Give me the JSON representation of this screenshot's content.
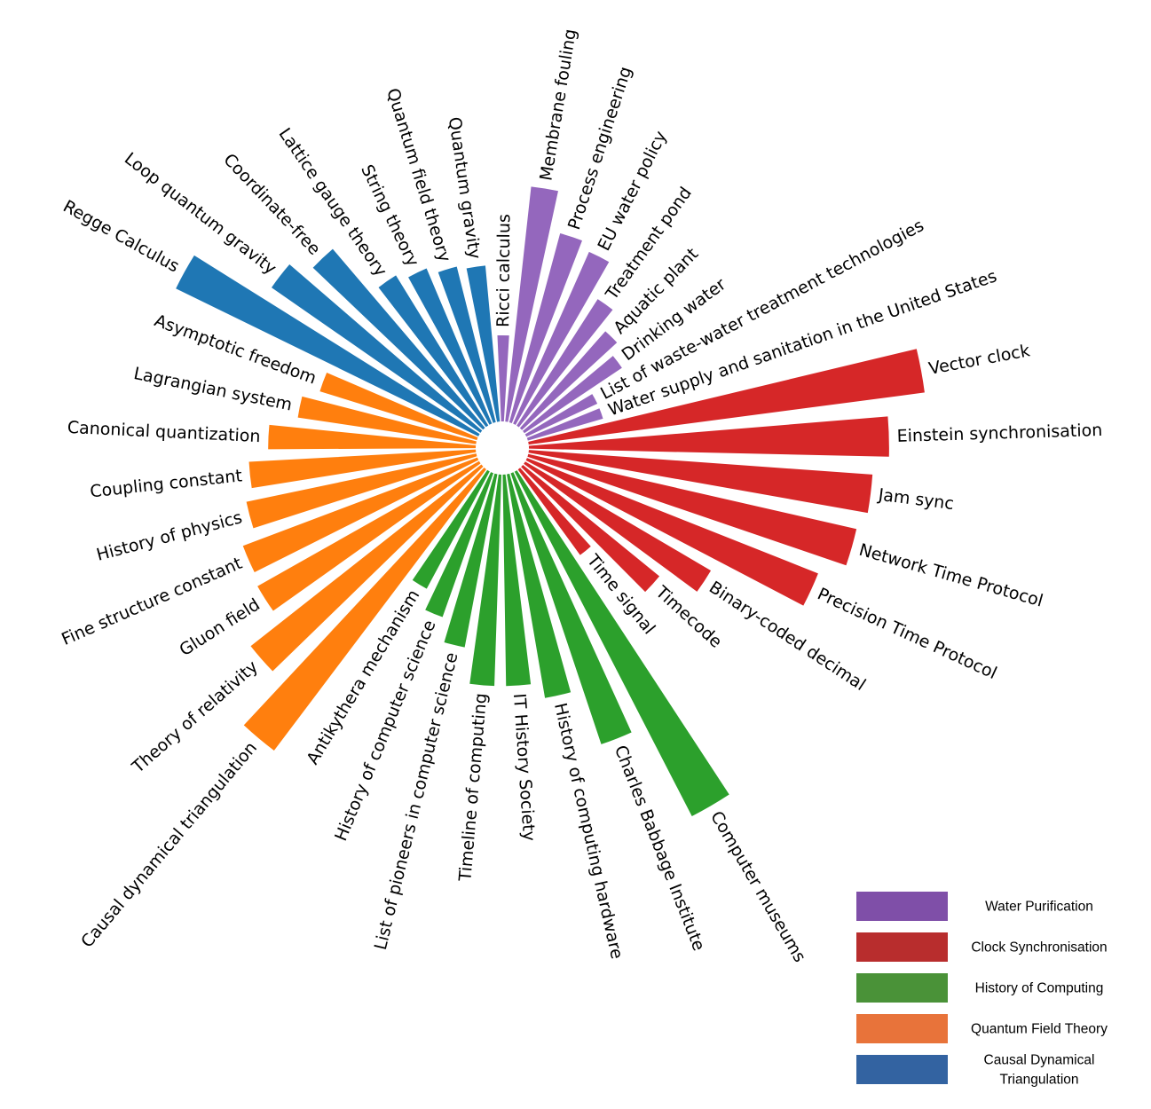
{
  "chart_data": {
    "type": "radial-bar",
    "title": "",
    "legend_position": "bottom-right",
    "grid": false,
    "groups": [
      {
        "name": "Water Purification",
        "color": "#9467bd"
      },
      {
        "name": "Clock Synchronisation",
        "color": "#d62728"
      },
      {
        "name": "History of Computing",
        "color": "#2ca02c"
      },
      {
        "name": "Quantum Field Theory",
        "color": "#ff7f0e"
      },
      {
        "name": "Causal Dynamical Triangulation",
        "color": "#1f77b4"
      }
    ],
    "legend_labels": [
      {
        "text": "Water Purification",
        "swatch_color": "#7f4fa8"
      },
      {
        "text": "Clock Synchronisation",
        "swatch_color": "#b82d2d"
      },
      {
        "text": "History of Computing",
        "swatch_color": "#4a9238"
      },
      {
        "text": "Quantum Field Theory",
        "swatch_color": "#e8733a"
      },
      {
        "text": "Causal Dynamical Triangulation",
        "swatch_color": "#3363a1"
      }
    ],
    "bars": [
      {
        "label": "Ricci calculus",
        "group": 0,
        "value": 110
      },
      {
        "label": "Membrane fouling",
        "group": 0,
        "value": 302
      },
      {
        "label": "Process engineering",
        "group": 0,
        "value": 250
      },
      {
        "label": "EU water policy",
        "group": 0,
        "value": 240
      },
      {
        "label": "Treatment pond",
        "group": 0,
        "value": 192
      },
      {
        "label": "Aquatic plant",
        "group": 0,
        "value": 165
      },
      {
        "label": "Drinking water",
        "group": 0,
        "value": 150
      },
      {
        "label": "List of waste-water treatment technologies",
        "group": 0,
        "value": 100
      },
      {
        "label": "Water supply and sanitation in the United States",
        "group": 0,
        "value": 100
      },
      {
        "label": "Vector clock",
        "group": 1,
        "value": 510
      },
      {
        "label": "Einstein synchronisation",
        "group": 1,
        "value": 460
      },
      {
        "label": "Jam sync",
        "group": 1,
        "value": 440
      },
      {
        "label": "Network Time Protocol",
        "group": 1,
        "value": 430
      },
      {
        "label": "Precision Time Protocol",
        "group": 1,
        "value": 400
      },
      {
        "label": "Binary-coded decimal",
        "group": 1,
        "value": 275
      },
      {
        "label": "Timecode",
        "group": 1,
        "value": 225
      },
      {
        "label": "Time signal",
        "group": 1,
        "value": 135
      },
      {
        "label": "Computer museums",
        "group": 2,
        "value": 495
      },
      {
        "label": "Charles Babbage Institute",
        "group": 2,
        "value": 365
      },
      {
        "label": "History of computing hardware",
        "group": 2,
        "value": 290
      },
      {
        "label": "IT History Society",
        "group": 2,
        "value": 270
      },
      {
        "label": "Timeline of computing",
        "group": 2,
        "value": 270
      },
      {
        "label": "List of pioneers in computer science",
        "group": 2,
        "value": 225
      },
      {
        "label": "History of computer science",
        "group": 2,
        "value": 195
      },
      {
        "label": "Antikythera mechanism",
        "group": 2,
        "value": 170
      },
      {
        "label": "Causal dynamical triangulation",
        "group": 3,
        "value": 450
      },
      {
        "label": "Theory of relativity",
        "group": 3,
        "value": 375
      },
      {
        "label": "Gluon field",
        "group": 3,
        "value": 325
      },
      {
        "label": "Fine structure constant",
        "group": 3,
        "value": 320
      },
      {
        "label": "History of physics",
        "group": 3,
        "value": 300
      },
      {
        "label": "Coupling constant",
        "group": 3,
        "value": 290
      },
      {
        "label": "Canonical quantization",
        "group": 3,
        "value": 265
      },
      {
        "label": "Lagrangian system",
        "group": 3,
        "value": 230
      },
      {
        "label": "Asymptotic freedom",
        "group": 3,
        "value": 210
      },
      {
        "label": "Regge Calculus",
        "group": 4,
        "value": 430
      },
      {
        "label": "Loop quantum gravity",
        "group": 4,
        "value": 325
      },
      {
        "label": "Coordinate-free",
        "group": 4,
        "value": 300
      },
      {
        "label": "Lattice gauge theory",
        "group": 4,
        "value": 225
      },
      {
        "label": "String theory",
        "group": 4,
        "value": 215
      },
      {
        "label": "Quantum field theory",
        "group": 4,
        "value": 205
      },
      {
        "label": "Quantum gravity",
        "group": 4,
        "value": 200
      }
    ]
  }
}
